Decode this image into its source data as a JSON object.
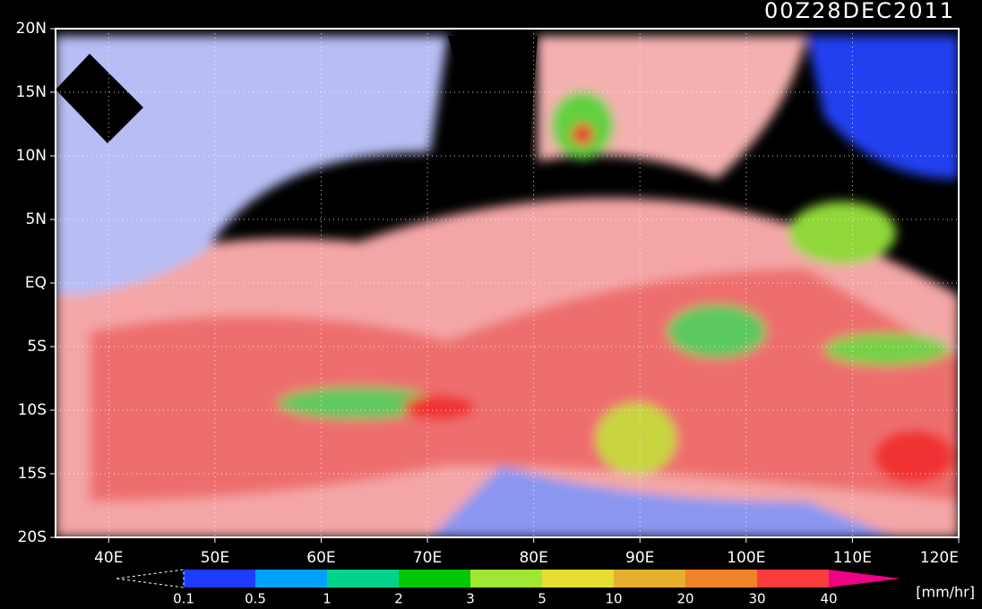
{
  "map": {
    "title": "00Z28DEC2011",
    "lat_labels": [
      "20N",
      "15N",
      "10N",
      "5N",
      "EQ",
      "5S",
      "10S",
      "15S",
      "20S"
    ],
    "lon_labels": [
      "40E",
      "50E",
      "60E",
      "70E",
      "80E",
      "90E",
      "100E",
      "110E",
      "120E"
    ]
  },
  "colorbar": {
    "levels": [
      0.1,
      0.5,
      1,
      2,
      3,
      5,
      10,
      20,
      30,
      40
    ],
    "colors": [
      "#1e3cff",
      "#00a0ff",
      "#00d28c",
      "#00c800",
      "#a0e632",
      "#e6dc32",
      "#e6af2d",
      "#f08228",
      "#fa3c3c"
    ],
    "over_color": "#f00082",
    "unit": "[mm/hr]"
  }
}
